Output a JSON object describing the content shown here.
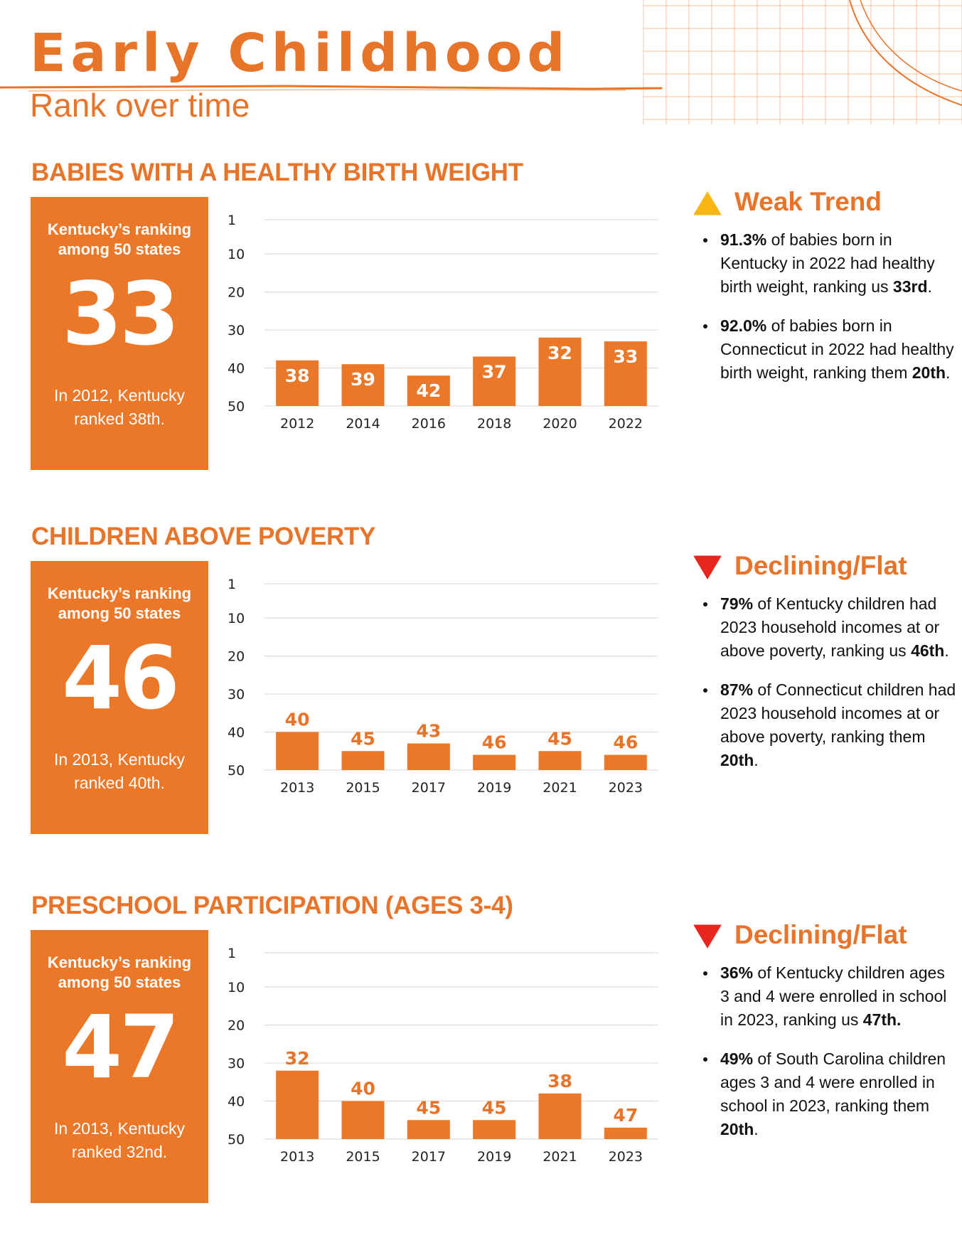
{
  "header": {
    "title": "Early Childhood",
    "subtitle": "Rank over time"
  },
  "colors": {
    "accent": "#E8742A",
    "bar": "#EB7729",
    "warn_yellow": "#F7B614",
    "down_red": "#E8251E",
    "grid": "#DDDDDD"
  },
  "sections": [
    {
      "heading": "BABIES WITH A HEALTHY BIRTH WEIGHT",
      "rank_label": "Kentucky’s ranking among 50 states",
      "rank_value": "33",
      "rank_note": "In 2012, Kentucky ranked 38th.",
      "trend": {
        "icon": "warning-triangle-icon",
        "label": "Weak Trend"
      },
      "facts": [
        {
          "strong": "91.3%",
          "text": " of babies born in Kentucky in 2022 had healthy birth weight, ranking us ",
          "strong2": "33rd",
          "tail": "."
        },
        {
          "strong": "92.0%",
          "text": " of babies born in Connecticut in 2022 had healthy birth weight, ranking them ",
          "strong2": "20th",
          "tail": "."
        }
      ]
    },
    {
      "heading": "CHILDREN ABOVE POVERTY",
      "rank_label": "Kentucky’s ranking among 50 states",
      "rank_value": "46",
      "rank_note": "In 2013, Kentucky ranked 40th.",
      "trend": {
        "icon": "down-triangle-icon",
        "label": "Declining/Flat"
      },
      "facts": [
        {
          "strong": "79%",
          "text": " of Kentucky children had 2023 household incomes at or above poverty, ranking us ",
          "strong2": "46th",
          "tail": "."
        },
        {
          "strong": "87%",
          "text": " of Connecticut children had 2023 household incomes at or above poverty, ranking them ",
          "strong2": "20th",
          "tail": "."
        }
      ]
    },
    {
      "heading": "PRESCHOOL PARTICIPATION (AGES 3-4)",
      "rank_label": "Kentucky’s ranking among 50 states",
      "rank_value": "47",
      "rank_note": "In 2013, Kentucky ranked 32nd.",
      "trend": {
        "icon": "down-triangle-icon",
        "label": "Declining/Flat"
      },
      "facts": [
        {
          "strong": "36%",
          "text": " of Kentucky children ages 3 and 4 were enrolled in school in 2023, ranking us ",
          "strong2": "47th.",
          "tail": ""
        },
        {
          "strong": "49%",
          "text": " of South Carolina children ages 3 and 4 were enrolled in school in 2023, ranking them ",
          "strong2": "20th",
          "tail": "."
        }
      ]
    }
  ],
  "chart_data": [
    {
      "type": "bar",
      "categories": [
        "2012",
        "2014",
        "2016",
        "2018",
        "2020",
        "2022"
      ],
      "values": [
        38,
        39,
        42,
        37,
        32,
        33
      ],
      "title": "BABIES WITH A HEALTHY BIRTH WEIGHT",
      "xlabel": "",
      "ylabel": "",
      "ylim": [
        1,
        50
      ],
      "y_inverted": true,
      "yticks": [
        1,
        10,
        20,
        30,
        40,
        50
      ],
      "label_position": "inside-top",
      "grid": true,
      "legend": "none"
    },
    {
      "type": "bar",
      "categories": [
        "2013",
        "2015",
        "2017",
        "2019",
        "2021",
        "2023"
      ],
      "values": [
        40,
        45,
        43,
        46,
        45,
        46
      ],
      "title": "CHILDREN ABOVE POVERTY",
      "xlabel": "",
      "ylabel": "",
      "ylim": [
        1,
        50
      ],
      "y_inverted": true,
      "yticks": [
        1,
        10,
        20,
        30,
        40,
        50
      ],
      "label_position": "above",
      "grid": true,
      "legend": "none"
    },
    {
      "type": "bar",
      "categories": [
        "2013",
        "2015",
        "2017",
        "2019",
        "2021",
        "2023"
      ],
      "values": [
        32,
        40,
        45,
        45,
        38,
        47
      ],
      "title": "PRESCHOOL PARTICIPATION (AGES 3-4)",
      "xlabel": "",
      "ylabel": "",
      "ylim": [
        1,
        50
      ],
      "y_inverted": true,
      "yticks": [
        1,
        10,
        20,
        30,
        40,
        50
      ],
      "label_position": "above",
      "grid": true,
      "legend": "none"
    }
  ]
}
